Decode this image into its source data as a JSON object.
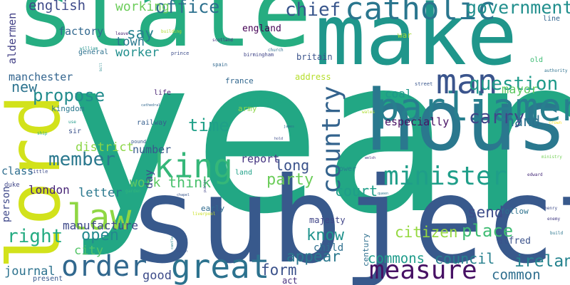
{
  "words": [
    {
      "text": "year",
      "color": "#22a784"
    },
    {
      "text": "state",
      "color": "#26ad81"
    },
    {
      "text": "make",
      "color": "#1f968b"
    },
    {
      "text": "subject",
      "color": "#38598c"
    },
    {
      "text": "house",
      "color": "#2a788e"
    },
    {
      "text": "lord",
      "color": "#d2e21b"
    },
    {
      "text": "parliament",
      "color": "#277f8e"
    },
    {
      "text": "catholic",
      "color": "#2a768e"
    },
    {
      "text": "man",
      "color": "#3a548c"
    },
    {
      "text": "great",
      "color": "#2c728e"
    },
    {
      "text": "king",
      "color": "#35b779"
    },
    {
      "text": "measure",
      "color": "#471164"
    },
    {
      "text": "order",
      "color": "#31688e"
    },
    {
      "text": "law",
      "color": "#8fd744"
    },
    {
      "text": "minister",
      "color": "#1f9e89"
    },
    {
      "text": "country",
      "color": "#33638d"
    },
    {
      "text": "government",
      "color": "#218f8d"
    },
    {
      "text": "office",
      "color": "#2d718e"
    },
    {
      "text": "english",
      "color": "#3e4a89"
    },
    {
      "text": "working",
      "color": "#6ccd5a"
    },
    {
      "text": "chief",
      "color": "#39568c"
    },
    {
      "text": "question",
      "color": "#1f9a8a"
    },
    {
      "text": "carry",
      "color": "#404688"
    },
    {
      "text": "mayor",
      "color": "#5ec962"
    },
    {
      "text": "hand",
      "color": "#2c718e"
    },
    {
      "text": "time",
      "color": "#1fa088"
    },
    {
      "text": "propose",
      "color": "#228c8d"
    },
    {
      "text": "new",
      "color": "#2c738e"
    },
    {
      "text": "member",
      "color": "#2a788e"
    },
    {
      "text": "think",
      "color": "#4ac16d"
    },
    {
      "text": "work",
      "color": "#5ec962"
    },
    {
      "text": "long",
      "color": "#3b528b"
    },
    {
      "text": "party",
      "color": "#6ccd5a"
    },
    {
      "text": "court",
      "color": "#1f9e89"
    },
    {
      "text": "send",
      "color": "#3e4c8a"
    },
    {
      "text": "place",
      "color": "#3fbc73"
    },
    {
      "text": "citizen",
      "color": "#95d840"
    },
    {
      "text": "ireland",
      "color": "#25838e"
    },
    {
      "text": "common",
      "color": "#2e6e8e"
    },
    {
      "text": "council",
      "color": "#27808e"
    },
    {
      "text": "commons",
      "color": "#1e9b8a"
    },
    {
      "text": "know",
      "color": "#20928c"
    },
    {
      "text": "appear",
      "color": "#2a788e"
    },
    {
      "text": "form",
      "color": "#3b528b"
    },
    {
      "text": "open",
      "color": "#23898e"
    },
    {
      "text": "right",
      "color": "#25ab82"
    },
    {
      "text": "city",
      "color": "#54c568"
    },
    {
      "text": "journal",
      "color": "#2c728e"
    },
    {
      "text": "good",
      "color": "#3e4c8a"
    },
    {
      "text": "person",
      "color": "#3f4889"
    },
    {
      "text": "manufacture",
      "color": "#3e4989"
    },
    {
      "text": "letter",
      "color": "#2a788e"
    },
    {
      "text": "london",
      "color": "#482576"
    },
    {
      "text": "district",
      "color": "#8bd646"
    },
    {
      "text": "class",
      "color": "#2e6d8e"
    },
    {
      "text": "number",
      "color": "#375a8c"
    },
    {
      "text": "day",
      "color": "#3e4c8a"
    },
    {
      "text": "report",
      "color": "#453581"
    },
    {
      "text": "company",
      "color": "#22a884"
    },
    {
      "text": "town",
      "color": "#29788e"
    },
    {
      "text": "worker",
      "color": "#218f8d"
    },
    {
      "text": "say",
      "color": "#27808e"
    },
    {
      "text": "factory",
      "color": "#31688e"
    },
    {
      "text": "aldermen",
      "color": "#424086"
    },
    {
      "text": "manchester",
      "color": "#32648e"
    },
    {
      "text": "england",
      "color": "#440154"
    },
    {
      "text": "britain",
      "color": "#3a538b"
    },
    {
      "text": "general",
      "color": "#2c718e"
    },
    {
      "text": "coal",
      "color": "#1f988b"
    },
    {
      "text": "especially",
      "color": "#471063"
    },
    {
      "text": "kingdom",
      "color": "#2a788e"
    },
    {
      "text": "child",
      "color": "#2e6f8e"
    },
    {
      "text": "majesty",
      "color": "#404588"
    },
    {
      "text": "alfred",
      "color": "#3b528b"
    },
    {
      "text": "follow",
      "color": "#2c728e"
    },
    {
      "text": "railway",
      "color": "#355e8d"
    },
    {
      "text": "france",
      "color": "#31678e"
    },
    {
      "text": "army",
      "color": "#8bd646"
    },
    {
      "text": "address",
      "color": "#b5de2b"
    },
    {
      "text": "early",
      "color": "#2f6b8e"
    },
    {
      "text": "century",
      "color": "#2e6f8e"
    },
    {
      "text": "present",
      "color": "#38588c"
    },
    {
      "text": "act",
      "color": "#46307e"
    },
    {
      "text": "power",
      "color": "#26828e"
    },
    {
      "text": "land",
      "color": "#1fa188"
    },
    {
      "text": "sir",
      "color": "#3b528b"
    },
    {
      "text": "life",
      "color": "#482374"
    },
    {
      "text": "old",
      "color": "#3dbc74"
    },
    {
      "text": "line",
      "color": "#32648e"
    },
    {
      "text": "war",
      "color": "#a2da37"
    },
    {
      "text": "duke",
      "color": "#404688"
    },
    {
      "text": "little",
      "color": "#3e4c8a"
    },
    {
      "text": "street",
      "color": "#39568c"
    },
    {
      "text": "spain",
      "color": "#31688e"
    },
    {
      "text": "pound",
      "color": "#38598c"
    },
    {
      "text": "birmingham",
      "color": "#404588"
    },
    {
      "text": "prince",
      "color": "#3d4d8a"
    },
    {
      "text": "scotland",
      "color": "#46327e"
    },
    {
      "text": "church",
      "color": "#2e6d8e"
    },
    {
      "text": "building",
      "color": "#addc30"
    },
    {
      "text": "leave",
      "color": "#482374"
    },
    {
      "text": "william",
      "color": "#20928c"
    },
    {
      "text": "ship",
      "color": "#26ad81"
    },
    {
      "text": "use",
      "color": "#1f9a8a"
    },
    {
      "text": "cathedral",
      "color": "#31678e"
    },
    {
      "text": "henry",
      "color": "#3e4c8a"
    },
    {
      "text": "enemy",
      "color": "#433d84"
    },
    {
      "text": "build",
      "color": "#2a768e"
    },
    {
      "text": "ministry",
      "color": "#73d056"
    },
    {
      "text": "edward",
      "color": "#472c7a"
    },
    {
      "text": "authority",
      "color": "#2d718e"
    },
    {
      "text": "garden",
      "color": "#32b67a"
    },
    {
      "text": "chapel",
      "color": "#39568c"
    },
    {
      "text": "public",
      "color": "#404588"
    },
    {
      "text": "queen",
      "color": "#2a788e"
    },
    {
      "text": "liverpool",
      "color": "#c8e020"
    },
    {
      "text": "baron",
      "color": "#3a548c"
    },
    {
      "text": "castle",
      "color": "#25848e"
    },
    {
      "text": "welsh",
      "color": "#46307e"
    },
    {
      "text": "hold",
      "color": "#3d4e8a"
    },
    {
      "text": "james",
      "color": "#2c718e"
    },
    {
      "text": "bill",
      "color": "#23898e"
    },
    {
      "text": "wales",
      "color": "#addc30"
    },
    {
      "text": "crown",
      "color": "#fde725"
    }
  ]
}
